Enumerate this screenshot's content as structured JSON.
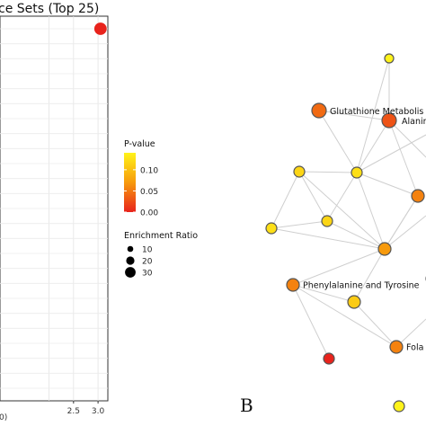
{
  "chart_data": [
    {
      "type": "scatter",
      "title": "ce Sets (Top 25)",
      "x_ticks": [
        "2.5",
        "3.0"
      ],
      "bottom_left_tick": "0)",
      "xlim": [
        1.0,
        3.2
      ],
      "points": [
        {
          "x": 3.05,
          "p_value": 0.0,
          "enrichment_ratio": 28
        }
      ],
      "grid": true,
      "legend": {
        "color_title": "P-value",
        "color_ticks": [
          "0.10",
          "0.05",
          "0.00"
        ],
        "size_title": "Enrichment Ratio",
        "size_ticks": [
          "10",
          "20",
          "30"
        ]
      }
    },
    {
      "type": "network",
      "panel_label": "B",
      "nodes": [
        {
          "id": "n1",
          "label": "",
          "p_value": 0.14
        },
        {
          "id": "n2",
          "label": "Glutathione Metabolis",
          "p_value": 0.03
        },
        {
          "id": "n3",
          "label": "Alanin",
          "p_value": 0.02
        },
        {
          "id": "n4",
          "label": "",
          "p_value": 0.12
        },
        {
          "id": "n5",
          "label": "",
          "p_value": 0.11
        },
        {
          "id": "n6",
          "label": "",
          "p_value": 0.04
        },
        {
          "id": "n7",
          "label": "",
          "p_value": 0.12
        },
        {
          "id": "n8",
          "label": "",
          "p_value": 0.11
        },
        {
          "id": "n9",
          "label": "",
          "p_value": 0.05
        },
        {
          "id": "n10",
          "label": "Phenylalanine and Tyrosine",
          "p_value": 0.04
        },
        {
          "id": "n11",
          "label": "",
          "p_value": 0.1
        },
        {
          "id": "n12",
          "label": "Fola",
          "p_value": 0.04
        },
        {
          "id": "n13",
          "label": "",
          "p_value": 0.0
        },
        {
          "id": "n14",
          "label": "",
          "p_value": 0.14
        },
        {
          "id": "n15",
          "label": "",
          "p_value": 0.13
        }
      ],
      "edges": [
        [
          "n1",
          "n4"
        ],
        [
          "n2",
          "n4"
        ],
        [
          "n3",
          "n4"
        ],
        [
          "n4",
          "n6"
        ],
        [
          "n4",
          "n5"
        ],
        [
          "n4",
          "n8"
        ],
        [
          "n4",
          "n9"
        ],
        [
          "n5",
          "n8"
        ],
        [
          "n5",
          "n9"
        ],
        [
          "n7",
          "n5"
        ],
        [
          "n7",
          "n8"
        ],
        [
          "n7",
          "n9"
        ],
        [
          "n8",
          "n9"
        ],
        [
          "n9",
          "n10"
        ],
        [
          "n9",
          "n11"
        ],
        [
          "n9",
          "n6"
        ],
        [
          "n10",
          "n11"
        ],
        [
          "n10",
          "n12"
        ],
        [
          "n11",
          "n12"
        ],
        [
          "n10",
          "n13"
        ],
        [
          "n3",
          "n6"
        ],
        [
          "n2",
          "n3"
        ],
        [
          "n6",
          "n9"
        ],
        [
          "n1",
          "n3"
        ]
      ]
    }
  ]
}
